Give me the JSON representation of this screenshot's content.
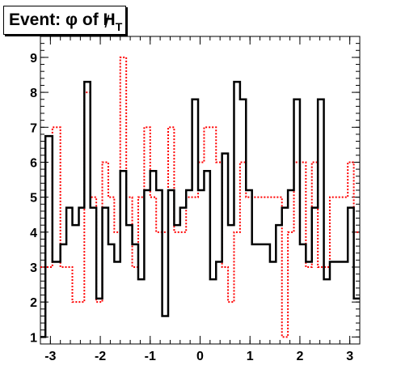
{
  "title": {
    "prefix": "Event: ",
    "phi": "φ",
    "of": " of ",
    "met_letter": "H",
    "met_slash": "/",
    "met_sub": "T"
  },
  "chart_data": {
    "type": "step",
    "title": "Event: φ of H/T",
    "xlim": [
      -3.2,
      3.2
    ],
    "ylim": [
      0.8,
      9.6
    ],
    "xticks": [
      -3,
      -2,
      -1,
      0,
      1,
      2,
      3
    ],
    "yticks": [
      1,
      2,
      3,
      4,
      5,
      6,
      7,
      8,
      9
    ],
    "grid": false,
    "legend": "none",
    "series": [
      {
        "style": "solid",
        "color": "#000000",
        "bins": [
          [
            -3.2,
            -3.1,
            1
          ],
          [
            -3.1,
            -2.96,
            6.75
          ],
          [
            -2.96,
            -2.8,
            3.15
          ],
          [
            -2.8,
            -2.68,
            3.65
          ],
          [
            -2.68,
            -2.56,
            4.7
          ],
          [
            -2.56,
            -2.43,
            4.2
          ],
          [
            -2.43,
            -2.32,
            4.7
          ],
          [
            -2.32,
            -2.2,
            8.3
          ],
          [
            -2.2,
            -2.08,
            4.7
          ],
          [
            -2.08,
            -1.96,
            2.1
          ],
          [
            -1.96,
            -1.84,
            4.7
          ],
          [
            -1.84,
            -1.72,
            3.65
          ],
          [
            -1.72,
            -1.6,
            3.15
          ],
          [
            -1.6,
            -1.48,
            5.75
          ],
          [
            -1.48,
            -1.36,
            4.2
          ],
          [
            -1.36,
            -1.24,
            3.65
          ],
          [
            -1.24,
            -1.12,
            2.65
          ],
          [
            -1.12,
            -1.0,
            5.2
          ],
          [
            -1.0,
            -0.88,
            5.75
          ],
          [
            -0.88,
            -0.76,
            5.2
          ],
          [
            -0.76,
            -0.64,
            1.6
          ],
          [
            -0.64,
            -0.52,
            5.2
          ],
          [
            -0.52,
            -0.4,
            4.2
          ],
          [
            -0.4,
            -0.28,
            4.7
          ],
          [
            -0.28,
            -0.16,
            5.2
          ],
          [
            -0.16,
            -0.04,
            7.8
          ],
          [
            -0.04,
            0.08,
            5.2
          ],
          [
            0.08,
            0.2,
            5.75
          ],
          [
            0.2,
            0.32,
            2.65
          ],
          [
            0.32,
            0.44,
            3.15
          ],
          [
            0.44,
            0.56,
            6.25
          ],
          [
            0.56,
            0.68,
            4.2
          ],
          [
            0.68,
            0.8,
            8.3
          ],
          [
            0.8,
            0.92,
            7.8
          ],
          [
            0.92,
            1.04,
            5.2
          ],
          [
            1.04,
            1.16,
            3.65
          ],
          [
            1.16,
            1.28,
            3.65
          ],
          [
            1.28,
            1.4,
            3.65
          ],
          [
            1.4,
            1.52,
            3.15
          ],
          [
            1.52,
            1.64,
            4.2
          ],
          [
            1.64,
            1.76,
            4.7
          ],
          [
            1.76,
            1.88,
            5.2
          ],
          [
            1.88,
            2.0,
            7.8
          ],
          [
            2.0,
            2.12,
            3.65
          ],
          [
            2.12,
            2.24,
            3.15
          ],
          [
            2.24,
            2.36,
            4.7
          ],
          [
            2.36,
            2.48,
            7.8
          ],
          [
            2.48,
            2.6,
            2.65
          ],
          [
            2.6,
            2.72,
            3.15
          ],
          [
            2.72,
            2.84,
            3.15
          ],
          [
            2.84,
            2.96,
            3.15
          ],
          [
            2.96,
            3.08,
            4.7
          ],
          [
            3.08,
            3.2,
            2.1
          ]
        ]
      },
      {
        "style": "dotted",
        "color": "#ff0000",
        "bins": [
          [
            -3.2,
            -3.1,
            3.0
          ],
          [
            -3.1,
            -2.96,
            3.0
          ],
          [
            -2.96,
            -2.8,
            7.0
          ],
          [
            -2.8,
            -2.68,
            3.0
          ],
          [
            -2.68,
            -2.56,
            3.0
          ],
          [
            -2.56,
            -2.43,
            2.0
          ],
          [
            -2.43,
            -2.32,
            2.0
          ],
          [
            -2.32,
            -2.2,
            8.0
          ],
          [
            -2.2,
            -2.08,
            5.0
          ],
          [
            -2.08,
            -1.96,
            2.0
          ],
          [
            -1.96,
            -1.84,
            6.0
          ],
          [
            -1.84,
            -1.72,
            5.0
          ],
          [
            -1.72,
            -1.6,
            4.0
          ],
          [
            -1.6,
            -1.48,
            9.0
          ],
          [
            -1.48,
            -1.36,
            5.0
          ],
          [
            -1.36,
            -1.24,
            3.0
          ],
          [
            -1.24,
            -1.12,
            5.0
          ],
          [
            -1.12,
            -1.0,
            7.0
          ],
          [
            -1.0,
            -0.88,
            5.0
          ],
          [
            -0.88,
            -0.76,
            4.0
          ],
          [
            -0.76,
            -0.64,
            4.0
          ],
          [
            -0.64,
            -0.52,
            7.0
          ],
          [
            -0.52,
            -0.4,
            4.0
          ],
          [
            -0.4,
            -0.28,
            4.0
          ],
          [
            -0.28,
            -0.16,
            5.0
          ],
          [
            -0.16,
            -0.04,
            5.0
          ],
          [
            -0.04,
            0.08,
            6.0
          ],
          [
            0.08,
            0.2,
            7.0
          ],
          [
            0.2,
            0.32,
            7.0
          ],
          [
            0.32,
            0.44,
            6.0
          ],
          [
            0.44,
            0.56,
            3.0
          ],
          [
            0.56,
            0.68,
            2.0
          ],
          [
            0.68,
            0.8,
            4.0
          ],
          [
            0.8,
            0.92,
            6.0
          ],
          [
            0.92,
            1.04,
            5.0
          ],
          [
            1.04,
            1.16,
            5.0
          ],
          [
            1.16,
            1.28,
            5.0
          ],
          [
            1.28,
            1.4,
            5.0
          ],
          [
            1.4,
            1.52,
            5.0
          ],
          [
            1.52,
            1.64,
            5.0
          ],
          [
            1.64,
            1.76,
            1.0
          ],
          [
            1.76,
            1.88,
            4.0
          ],
          [
            1.88,
            2.0,
            6.0
          ],
          [
            2.0,
            2.12,
            6.0
          ],
          [
            2.12,
            2.24,
            3.0
          ],
          [
            2.24,
            2.36,
            6.0
          ],
          [
            2.36,
            2.48,
            3.0
          ],
          [
            2.48,
            2.6,
            3.0
          ],
          [
            2.6,
            2.72,
            5.0
          ],
          [
            2.72,
            2.84,
            5.0
          ],
          [
            2.84,
            2.96,
            5.0
          ],
          [
            2.96,
            3.08,
            6.0
          ],
          [
            3.08,
            3.2,
            4.0
          ]
        ]
      }
    ]
  }
}
